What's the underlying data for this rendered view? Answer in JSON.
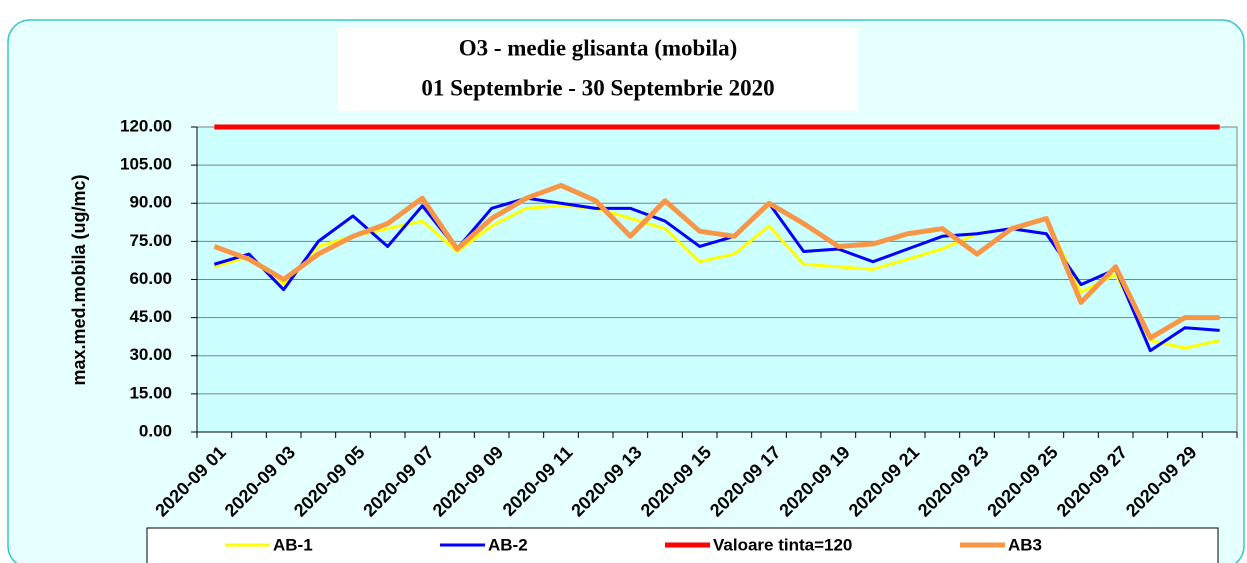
{
  "chart_data": {
    "type": "line",
    "title": "O3 - medie glisanta (mobila)",
    "subtitle": "01 Septembrie - 30 Septembrie  2020",
    "y_label": "max.med.mobila (ug/mc)",
    "categories": [
      "2020-09 01",
      null,
      "2020-09 03",
      null,
      "2020-09 05",
      null,
      "2020-09 07",
      null,
      "2020-09 09",
      null,
      "2020-09 11",
      null,
      "2020-09 13",
      null,
      "2020-09 15",
      null,
      "2020-09 17",
      null,
      "2020-09 19",
      null,
      "2020-09 21",
      null,
      "2020-09 23",
      null,
      "2020-09 25",
      null,
      "2020-09 27",
      null,
      "2020-09 29",
      null
    ],
    "series": [
      {
        "name": "AB-1",
        "color": "#ffff00",
        "width": 3,
        "values": [
          65,
          69,
          58,
          73,
          77,
          80,
          83,
          71,
          81,
          88,
          89,
          88,
          84,
          80,
          67,
          70,
          81,
          66,
          65,
          64,
          68,
          72,
          78,
          80,
          84,
          55,
          62,
          36,
          33,
          36
        ]
      },
      {
        "name": "AB-2",
        "color": "#0000ff",
        "width": 3,
        "values": [
          66,
          70,
          56,
          75,
          85,
          73,
          89,
          72,
          88,
          92,
          90,
          88,
          88,
          83,
          73,
          77,
          90,
          71,
          72,
          67,
          72,
          77,
          78,
          80,
          78,
          58,
          64,
          32,
          41,
          40
        ]
      },
      {
        "name": "Valoare tinta=120",
        "color": "#ff0000",
        "width": 5,
        "values": [
          120,
          120,
          120,
          120,
          120,
          120,
          120,
          120,
          120,
          120,
          120,
          120,
          120,
          120,
          120,
          120,
          120,
          120,
          120,
          120,
          120,
          120,
          120,
          120,
          120,
          120,
          120,
          120,
          120,
          120
        ]
      },
      {
        "name": "AB3",
        "color": "#f79646",
        "width": 5,
        "values": [
          73,
          68,
          60,
          70,
          77,
          82,
          92,
          72,
          84,
          92,
          97,
          91,
          77,
          91,
          79,
          77,
          90,
          82,
          73,
          74,
          78,
          80,
          70,
          80,
          84,
          51,
          65,
          37,
          45,
          45
        ]
      }
    ],
    "ylim": [
      0,
      120
    ],
    "yticks": [
      {
        "value": 0,
        "label": "0.00"
      },
      {
        "value": 15,
        "label": "15.00"
      },
      {
        "value": 30,
        "label": "30.00"
      },
      {
        "value": 45,
        "label": "45.00"
      },
      {
        "value": 60,
        "label": "60.00"
      },
      {
        "value": 75,
        "label": "75.00"
      },
      {
        "value": 90,
        "label": "90.00"
      },
      {
        "value": 105,
        "label": "105.00"
      },
      {
        "value": 120,
        "label": "120.00"
      }
    ],
    "grid": true
  }
}
